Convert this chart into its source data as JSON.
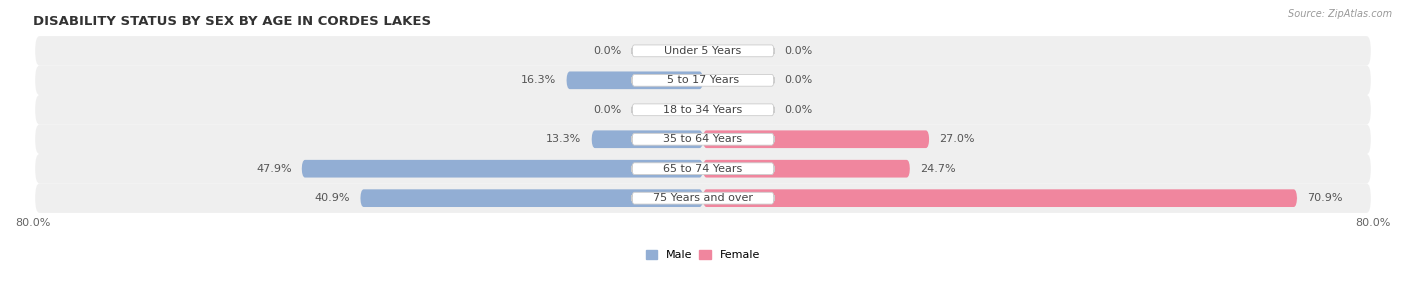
{
  "title": "DISABILITY STATUS BY SEX BY AGE IN CORDES LAKES",
  "source": "Source: ZipAtlas.com",
  "categories": [
    "Under 5 Years",
    "5 to 17 Years",
    "18 to 34 Years",
    "35 to 64 Years",
    "65 to 74 Years",
    "75 Years and over"
  ],
  "male_values": [
    0.0,
    16.3,
    0.0,
    13.3,
    47.9,
    40.9
  ],
  "female_values": [
    0.0,
    0.0,
    0.0,
    27.0,
    24.7,
    70.9
  ],
  "max_val": 80.0,
  "male_color": "#92aed4",
  "female_color": "#f0869e",
  "male_label": "Male",
  "female_label": "Female",
  "row_bg_color": "#efefef",
  "title_fontsize": 9.5,
  "label_fontsize": 8.0,
  "tick_fontsize": 8.0,
  "figsize": [
    14.06,
    3.05
  ],
  "dpi": 100
}
